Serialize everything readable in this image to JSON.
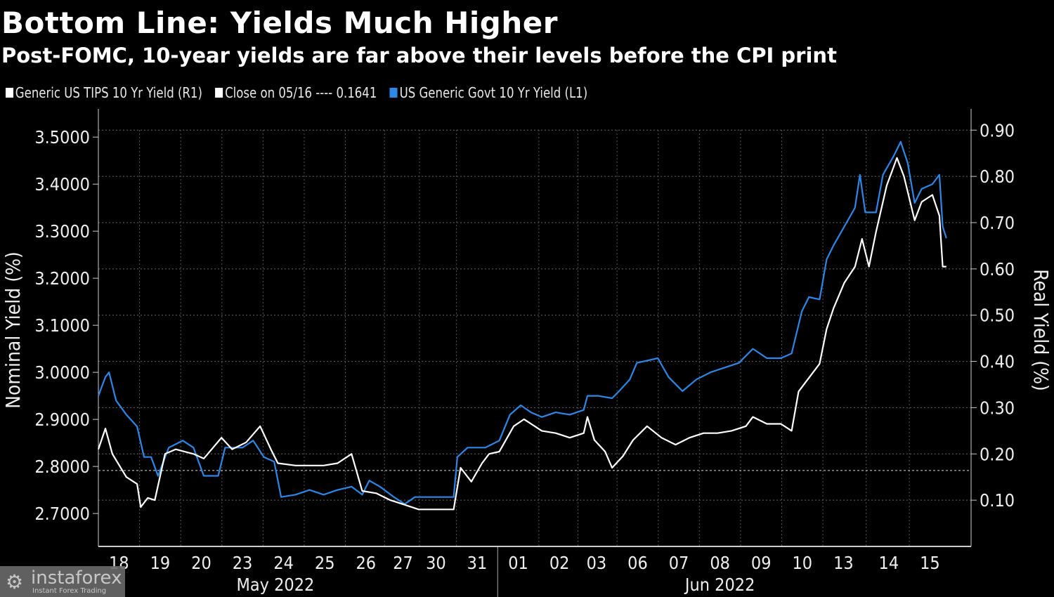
{
  "title": "Bottom Line: Yields Much Higher",
  "subtitle": "Post-FOMC, 10-year yields are far above their levels before the CPI print",
  "watermark": {
    "name": "instaforex",
    "tagline": "Instant Forex Trading"
  },
  "chart_data": {
    "type": "line",
    "legend": [
      {
        "label": "Generic US TIPS 10 Yr Yield (R1)",
        "color": "#ffffff"
      },
      {
        "label": "Close on 05/16 ---- 0.1641",
        "color": "#ffffff"
      },
      {
        "label": "US Generic Govt 10 Yr Yield (L1)",
        "color": "#2d87e6"
      }
    ],
    "legend_position": "top-left",
    "ylabel_left": "Nominal Yield (%)",
    "ylabel_right": "Real Yield (%)",
    "ylim_left": [
      2.63,
      3.56
    ],
    "ylim_right": [
      0.0,
      0.946
    ],
    "yticks_left": [
      "3.5000",
      "3.4000",
      "3.3000",
      "3.2000",
      "3.1000",
      "3.0000",
      "2.9000",
      "2.8000",
      "2.7000"
    ],
    "yticks_right": [
      "0.90",
      "0.80",
      "0.70",
      "0.60",
      "0.50",
      "0.40",
      "0.30",
      "0.20",
      "0.10"
    ],
    "xlim": [
      0,
      21.2
    ],
    "xticks": [
      [
        "18",
        0.5
      ],
      [
        "19",
        1.5
      ],
      [
        "20",
        2.5
      ],
      [
        "23",
        3.5
      ],
      [
        "24",
        4.5
      ],
      [
        "25",
        5.5
      ],
      [
        "26",
        6.5
      ],
      [
        "27",
        7.4
      ],
      [
        "30",
        8.2
      ],
      [
        "31",
        9.2
      ],
      [
        "01",
        10.2
      ],
      [
        "02",
        11.2
      ],
      [
        "03",
        12.1
      ],
      [
        "06",
        13.1
      ],
      [
        "07",
        14.1
      ],
      [
        "08",
        15.1
      ],
      [
        "09",
        16.1
      ],
      [
        "10",
        17.1
      ],
      [
        "13",
        18.1
      ],
      [
        "14",
        19.2
      ],
      [
        "15",
        20.2
      ]
    ],
    "months": [
      [
        "May 2022",
        4.3
      ],
      [
        "Jun 2022",
        15.1
      ]
    ],
    "month_separator": 9.7,
    "reference_line": {
      "label": "Close on 05/16",
      "value": 0.1641,
      "axis": "right"
    },
    "series": [
      {
        "name": "US Generic Govt 10 Yr Yield",
        "axis": "left",
        "color": "#2d87e6",
        "points": [
          [
            0,
            2.95
          ],
          [
            0.17,
            2.99
          ],
          [
            0.26,
            3.0
          ],
          [
            0.43,
            2.94
          ],
          [
            0.68,
            2.91
          ],
          [
            0.94,
            2.885
          ],
          [
            1.11,
            2.82
          ],
          [
            1.28,
            2.82
          ],
          [
            1.45,
            2.78
          ],
          [
            1.71,
            2.84
          ],
          [
            2.05,
            2.855
          ],
          [
            2.31,
            2.84
          ],
          [
            2.56,
            2.78
          ],
          [
            2.91,
            2.78
          ],
          [
            3.08,
            2.84
          ],
          [
            3.5,
            2.84
          ],
          [
            3.76,
            2.855
          ],
          [
            4.02,
            2.82
          ],
          [
            4.27,
            2.81
          ],
          [
            4.44,
            2.735
          ],
          [
            4.79,
            2.74
          ],
          [
            5.13,
            2.75
          ],
          [
            5.47,
            2.74
          ],
          [
            5.81,
            2.75
          ],
          [
            6.15,
            2.757
          ],
          [
            6.41,
            2.74
          ],
          [
            6.58,
            2.77
          ],
          [
            6.84,
            2.757
          ],
          [
            7.18,
            2.735
          ],
          [
            7.44,
            2.72
          ],
          [
            7.69,
            2.735
          ],
          [
            8.63,
            2.735
          ],
          [
            8.72,
            2.82
          ],
          [
            8.97,
            2.84
          ],
          [
            9.4,
            2.84
          ],
          [
            9.74,
            2.855
          ],
          [
            10.0,
            2.91
          ],
          [
            10.26,
            2.93
          ],
          [
            10.51,
            2.915
          ],
          [
            10.77,
            2.905
          ],
          [
            11.11,
            2.915
          ],
          [
            11.45,
            2.91
          ],
          [
            11.79,
            2.92
          ],
          [
            11.88,
            2.95
          ],
          [
            12.14,
            2.95
          ],
          [
            12.48,
            2.945
          ],
          [
            12.65,
            2.96
          ],
          [
            12.91,
            2.985
          ],
          [
            13.08,
            3.02
          ],
          [
            13.59,
            3.03
          ],
          [
            13.85,
            2.99
          ],
          [
            14.19,
            2.96
          ],
          [
            14.53,
            2.985
          ],
          [
            14.87,
            3.0
          ],
          [
            15.21,
            3.01
          ],
          [
            15.56,
            3.02
          ],
          [
            15.9,
            3.05
          ],
          [
            16.24,
            3.03
          ],
          [
            16.58,
            3.03
          ],
          [
            16.84,
            3.04
          ],
          [
            17.09,
            3.13
          ],
          [
            17.26,
            3.16
          ],
          [
            17.52,
            3.155
          ],
          [
            17.69,
            3.24
          ],
          [
            17.86,
            3.27
          ],
          [
            18.12,
            3.31
          ],
          [
            18.38,
            3.35
          ],
          [
            18.5,
            3.42
          ],
          [
            18.63,
            3.34
          ],
          [
            18.89,
            3.34
          ],
          [
            19.06,
            3.42
          ],
          [
            19.32,
            3.46
          ],
          [
            19.49,
            3.49
          ],
          [
            19.66,
            3.445
          ],
          [
            19.83,
            3.36
          ],
          [
            20.0,
            3.39
          ],
          [
            20.26,
            3.4
          ],
          [
            20.43,
            3.42
          ],
          [
            20.51,
            3.31
          ],
          [
            20.6,
            3.285
          ]
        ]
      },
      {
        "name": "Generic US TIPS 10 Yr Yield",
        "axis": "right",
        "color": "#ffffff",
        "points": [
          [
            0,
            0.21
          ],
          [
            0.17,
            0.255
          ],
          [
            0.34,
            0.2
          ],
          [
            0.68,
            0.15
          ],
          [
            0.94,
            0.135
          ],
          [
            1.03,
            0.085
          ],
          [
            1.2,
            0.105
          ],
          [
            1.37,
            0.1
          ],
          [
            1.62,
            0.2
          ],
          [
            1.88,
            0.21
          ],
          [
            2.31,
            0.2
          ],
          [
            2.56,
            0.19
          ],
          [
            2.99,
            0.235
          ],
          [
            3.25,
            0.21
          ],
          [
            3.59,
            0.225
          ],
          [
            3.93,
            0.26
          ],
          [
            4.19,
            0.21
          ],
          [
            4.36,
            0.18
          ],
          [
            4.79,
            0.175
          ],
          [
            5.13,
            0.175
          ],
          [
            5.47,
            0.175
          ],
          [
            5.81,
            0.18
          ],
          [
            6.15,
            0.2
          ],
          [
            6.41,
            0.12
          ],
          [
            6.75,
            0.115
          ],
          [
            7.09,
            0.1
          ],
          [
            7.44,
            0.09
          ],
          [
            7.78,
            0.08
          ],
          [
            8.63,
            0.08
          ],
          [
            8.8,
            0.17
          ],
          [
            9.06,
            0.14
          ],
          [
            9.32,
            0.18
          ],
          [
            9.49,
            0.2
          ],
          [
            9.74,
            0.205
          ],
          [
            10.09,
            0.26
          ],
          [
            10.34,
            0.275
          ],
          [
            10.77,
            0.25
          ],
          [
            11.11,
            0.245
          ],
          [
            11.45,
            0.235
          ],
          [
            11.79,
            0.245
          ],
          [
            11.88,
            0.28
          ],
          [
            12.05,
            0.23
          ],
          [
            12.31,
            0.205
          ],
          [
            12.48,
            0.17
          ],
          [
            12.74,
            0.195
          ],
          [
            12.99,
            0.23
          ],
          [
            13.33,
            0.26
          ],
          [
            13.68,
            0.235
          ],
          [
            14.02,
            0.22
          ],
          [
            14.36,
            0.235
          ],
          [
            14.7,
            0.245
          ],
          [
            15.04,
            0.245
          ],
          [
            15.38,
            0.25
          ],
          [
            15.73,
            0.26
          ],
          [
            15.9,
            0.28
          ],
          [
            16.24,
            0.265
          ],
          [
            16.58,
            0.265
          ],
          [
            16.84,
            0.25
          ],
          [
            17.01,
            0.335
          ],
          [
            17.18,
            0.355
          ],
          [
            17.52,
            0.395
          ],
          [
            17.69,
            0.47
          ],
          [
            17.86,
            0.515
          ],
          [
            18.12,
            0.57
          ],
          [
            18.38,
            0.605
          ],
          [
            18.55,
            0.665
          ],
          [
            18.72,
            0.605
          ],
          [
            18.89,
            0.68
          ],
          [
            19.15,
            0.78
          ],
          [
            19.4,
            0.84
          ],
          [
            19.57,
            0.8
          ],
          [
            19.83,
            0.705
          ],
          [
            20.0,
            0.745
          ],
          [
            20.26,
            0.76
          ],
          [
            20.43,
            0.715
          ],
          [
            20.51,
            0.605
          ],
          [
            20.6,
            0.605
          ]
        ]
      }
    ]
  }
}
